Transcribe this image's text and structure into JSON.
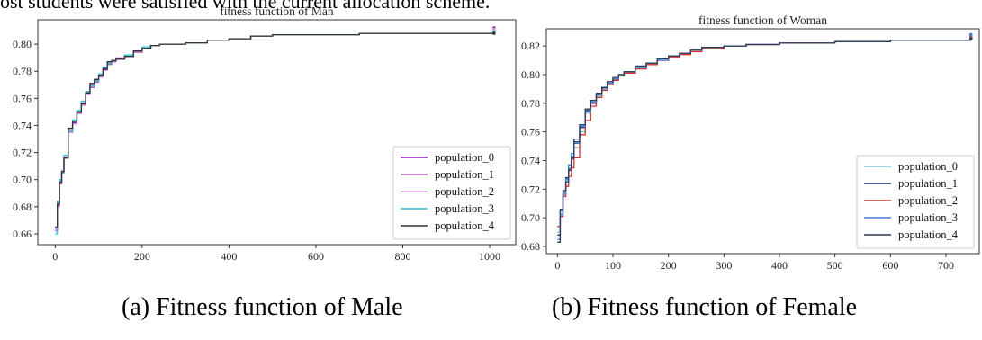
{
  "page": {
    "intro_text": "ost students were satisfied with the current allocation scheme.",
    "caption_left": "(a) Fitness function of Male",
    "caption_right": "(b) Fitness function of Female"
  },
  "chart_data": [
    {
      "type": "line",
      "title": "fitness function of Man",
      "xlabel": "",
      "ylabel": "",
      "xlim": [
        -40,
        1060
      ],
      "ylim": [
        0.652,
        0.818
      ],
      "xticks": [
        0,
        200,
        400,
        600,
        800,
        1000
      ],
      "yticks": [
        0.66,
        0.68,
        0.7,
        0.72,
        0.74,
        0.76,
        0.78,
        0.8
      ],
      "ytick_labels": [
        "0.66",
        "0.68",
        "0.70",
        "0.72",
        "0.74",
        "0.76",
        "0.78",
        "0.80"
      ],
      "legend_position": "lower-right",
      "grid": false,
      "x": [
        0,
        5,
        10,
        15,
        20,
        30,
        40,
        50,
        60,
        70,
        80,
        90,
        100,
        110,
        120,
        130,
        140,
        160,
        180,
        200,
        220,
        240,
        300,
        350,
        400,
        450,
        500,
        600,
        700,
        800,
        900,
        1000,
        1010
      ],
      "series": [
        {
          "name": "population_0",
          "color": "#8b1fb3",
          "values": [
            0.664,
            0.681,
            0.697,
            0.705,
            0.716,
            0.737,
            0.742,
            0.749,
            0.756,
            0.764,
            0.77,
            0.773,
            0.777,
            0.781,
            0.786,
            0.788,
            0.789,
            0.791,
            0.795,
            0.797,
            0.799,
            0.8,
            0.801,
            0.803,
            0.804,
            0.806,
            0.807,
            0.807,
            0.808,
            0.808,
            0.808,
            0.808,
            0.812
          ]
        },
        {
          "name": "population_1",
          "color": "#b05bb8",
          "values": [
            0.662,
            0.684,
            0.699,
            0.706,
            0.716,
            0.735,
            0.743,
            0.751,
            0.755,
            0.763,
            0.768,
            0.772,
            0.776,
            0.782,
            0.785,
            0.787,
            0.789,
            0.791,
            0.794,
            0.797,
            0.799,
            0.8,
            0.801,
            0.803,
            0.804,
            0.806,
            0.807,
            0.807,
            0.808,
            0.808,
            0.808,
            0.808,
            0.81
          ]
        },
        {
          "name": "population_2",
          "color": "#e39be3",
          "values": [
            0.663,
            0.68,
            0.698,
            0.707,
            0.717,
            0.737,
            0.741,
            0.75,
            0.757,
            0.765,
            0.77,
            0.774,
            0.777,
            0.782,
            0.786,
            0.788,
            0.79,
            0.792,
            0.795,
            0.797,
            0.799,
            0.8,
            0.801,
            0.803,
            0.804,
            0.806,
            0.807,
            0.807,
            0.808,
            0.808,
            0.808,
            0.808,
            0.811
          ]
        },
        {
          "name": "population_3",
          "color": "#29c3db",
          "values": [
            0.66,
            0.683,
            0.7,
            0.705,
            0.718,
            0.736,
            0.744,
            0.751,
            0.758,
            0.765,
            0.769,
            0.773,
            0.778,
            0.783,
            0.786,
            0.788,
            0.789,
            0.792,
            0.795,
            0.798,
            0.799,
            0.8,
            0.801,
            0.803,
            0.804,
            0.806,
            0.807,
            0.807,
            0.808,
            0.808,
            0.808,
            0.808,
            0.809
          ]
        },
        {
          "name": "population_4",
          "color": "#333333",
          "values": [
            0.665,
            0.682,
            0.698,
            0.706,
            0.716,
            0.738,
            0.743,
            0.75,
            0.756,
            0.764,
            0.771,
            0.774,
            0.777,
            0.782,
            0.787,
            0.788,
            0.789,
            0.791,
            0.795,
            0.797,
            0.799,
            0.8,
            0.801,
            0.803,
            0.804,
            0.806,
            0.807,
            0.807,
            0.808,
            0.808,
            0.808,
            0.808,
            0.808
          ]
        }
      ]
    },
    {
      "type": "line",
      "title": "fitness function of Woman",
      "xlabel": "",
      "ylabel": "",
      "xlim": [
        -20,
        760
      ],
      "ylim": [
        0.675,
        0.832
      ],
      "xticks": [
        0,
        100,
        200,
        300,
        400,
        500,
        600,
        700
      ],
      "yticks": [
        0.68,
        0.7,
        0.72,
        0.74,
        0.76,
        0.78,
        0.8,
        0.82
      ],
      "ytick_labels": [
        "0.68",
        "0.70",
        "0.72",
        "0.74",
        "0.76",
        "0.78",
        "0.80",
        "0.82"
      ],
      "legend_position": "lower-right",
      "grid": false,
      "x": [
        0,
        5,
        10,
        15,
        20,
        25,
        30,
        40,
        50,
        60,
        70,
        80,
        90,
        100,
        110,
        120,
        140,
        160,
        180,
        200,
        220,
        240,
        260,
        300,
        340,
        400,
        500,
        600,
        700,
        745
      ],
      "series": [
        {
          "name": "population_0",
          "color": "#7fc1db",
          "values": [
            0.69,
            0.703,
            0.716,
            0.726,
            0.735,
            0.743,
            0.749,
            0.76,
            0.773,
            0.78,
            0.785,
            0.79,
            0.794,
            0.797,
            0.799,
            0.801,
            0.804,
            0.807,
            0.81,
            0.813,
            0.815,
            0.817,
            0.819,
            0.82,
            0.821,
            0.822,
            0.823,
            0.824,
            0.824,
            0.827
          ]
        },
        {
          "name": "population_1",
          "color": "#1f2a6e",
          "values": [
            0.688,
            0.705,
            0.718,
            0.728,
            0.733,
            0.741,
            0.755,
            0.763,
            0.775,
            0.78,
            0.786,
            0.791,
            0.795,
            0.797,
            0.8,
            0.802,
            0.805,
            0.808,
            0.811,
            0.813,
            0.815,
            0.817,
            0.819,
            0.82,
            0.821,
            0.822,
            0.823,
            0.824,
            0.824,
            0.825
          ]
        },
        {
          "name": "population_2",
          "color": "#d9322e",
          "values": [
            0.694,
            0.701,
            0.715,
            0.722,
            0.729,
            0.735,
            0.742,
            0.758,
            0.768,
            0.778,
            0.784,
            0.789,
            0.793,
            0.796,
            0.799,
            0.801,
            0.804,
            0.807,
            0.81,
            0.812,
            0.814,
            0.816,
            0.818,
            0.82,
            0.821,
            0.822,
            0.823,
            0.824,
            0.824,
            0.826
          ]
        },
        {
          "name": "population_3",
          "color": "#3d7dd8",
          "values": [
            0.685,
            0.702,
            0.717,
            0.727,
            0.737,
            0.745,
            0.752,
            0.764,
            0.774,
            0.781,
            0.786,
            0.79,
            0.794,
            0.797,
            0.8,
            0.802,
            0.805,
            0.808,
            0.81,
            0.813,
            0.815,
            0.817,
            0.819,
            0.82,
            0.821,
            0.822,
            0.823,
            0.824,
            0.824,
            0.828
          ]
        },
        {
          "name": "population_4",
          "color": "#2e3d55",
          "values": [
            0.683,
            0.706,
            0.719,
            0.725,
            0.734,
            0.742,
            0.753,
            0.765,
            0.776,
            0.782,
            0.787,
            0.791,
            0.795,
            0.798,
            0.8,
            0.802,
            0.806,
            0.808,
            0.811,
            0.813,
            0.815,
            0.817,
            0.819,
            0.82,
            0.821,
            0.822,
            0.823,
            0.824,
            0.824,
            0.825
          ]
        }
      ]
    }
  ]
}
